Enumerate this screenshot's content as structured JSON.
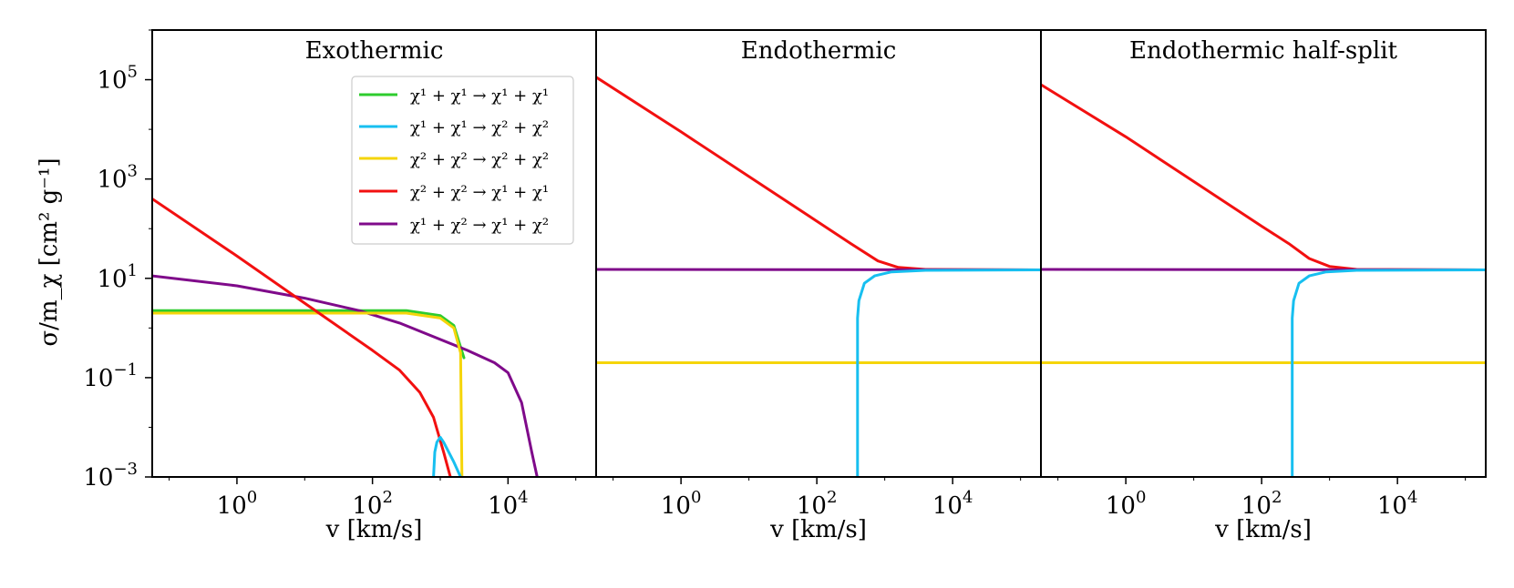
{
  "chart_data": {
    "type": "line",
    "xscale": "log",
    "yscale": "log",
    "xlim_log10": [
      -1.25,
      5.3
    ],
    "ylim_log10": [
      -3,
      6
    ],
    "ylabel": "σ/m_χ [cm² g⁻¹]",
    "y_tick_labels": [
      {
        "base": "10",
        "exp": "5",
        "log": 5
      },
      {
        "base": "10",
        "exp": "3",
        "log": 3
      },
      {
        "base": "10",
        "exp": "1",
        "log": 1
      },
      {
        "base": "10",
        "exp": "−1",
        "log": -1
      },
      {
        "base": "10",
        "exp": "−3",
        "log": -3
      }
    ],
    "x_tick_labels": [
      {
        "base": "10",
        "exp": "0",
        "log": 0
      },
      {
        "base": "10",
        "exp": "2",
        "log": 2
      },
      {
        "base": "10",
        "exp": "4",
        "log": 4
      }
    ],
    "legend": {
      "placement": "top-right of first panel",
      "entries": [
        {
          "key": "s11_11",
          "label": "χ¹ + χ¹ → χ¹ + χ¹",
          "color": "#2ecc2e"
        },
        {
          "key": "s11_22",
          "label": "χ¹ + χ¹ → χ² + χ²",
          "color": "#17bff0"
        },
        {
          "key": "s22_22",
          "label": "χ² + χ² → χ² + χ²",
          "color": "#f5d50a"
        },
        {
          "key": "s22_11",
          "label": "χ² + χ² → χ¹ + χ¹",
          "color": "#f21010"
        },
        {
          "key": "s12_12",
          "label": "χ¹ + χ² → χ¹ + χ²",
          "color": "#7f0a8a"
        }
      ]
    },
    "panels": [
      {
        "title": "Exothermic",
        "xlabel": "v [km/s]",
        "series": [
          {
            "key": "s11_11",
            "points": [
              [
                -1.25,
                0.35
              ],
              [
                2.5,
                0.35
              ],
              [
                3.0,
                0.25
              ],
              [
                3.2,
                0.05
              ],
              [
                3.35,
                -0.6
              ]
            ]
          },
          {
            "key": "s12_12",
            "points": [
              [
                -1.25,
                1.05
              ],
              [
                0,
                0.85
              ],
              [
                1,
                0.6
              ],
              [
                1.8,
                0.35
              ],
              [
                2.4,
                0.1
              ],
              [
                3.4,
                -0.45
              ],
              [
                3.8,
                -0.7
              ],
              [
                4.0,
                -0.9
              ],
              [
                4.2,
                -1.5
              ],
              [
                4.35,
                -2.5
              ],
              [
                4.43,
                -3.0
              ]
            ]
          },
          {
            "key": "s22_22",
            "points": [
              [
                -1.25,
                0.3
              ],
              [
                2.5,
                0.3
              ],
              [
                3.0,
                0.2
              ],
              [
                3.2,
                0.0
              ],
              [
                3.3,
                -0.5
              ],
              [
                3.32,
                -3.0
              ]
            ]
          },
          {
            "key": "s22_11",
            "points": [
              [
                -1.25,
                2.6
              ],
              [
                0,
                1.45
              ],
              [
                1,
                0.5
              ],
              [
                2.0,
                -0.45
              ],
              [
                2.4,
                -0.85
              ],
              [
                2.7,
                -1.3
              ],
              [
                2.9,
                -1.8
              ],
              [
                3.05,
                -2.5
              ],
              [
                3.15,
                -3.0
              ]
            ]
          },
          {
            "key": "s11_22",
            "points": [
              [
                2.9,
                -3.0
              ],
              [
                2.92,
                -2.5
              ],
              [
                2.95,
                -2.3
              ],
              [
                3.0,
                -2.2
              ],
              [
                3.05,
                -2.3
              ],
              [
                3.2,
                -2.7
              ],
              [
                3.3,
                -3.0
              ]
            ]
          }
        ]
      },
      {
        "title": "Endothermic",
        "xlabel": "v [km/s]",
        "series": [
          {
            "key": "s22_11",
            "points": [
              [
                -1.25,
                5.05
              ],
              [
                0,
                3.95
              ],
              [
                1,
                3.05
              ],
              [
                2,
                2.15
              ],
              [
                2.5,
                1.7
              ],
              [
                2.9,
                1.35
              ],
              [
                3.2,
                1.22
              ],
              [
                3.6,
                1.18
              ],
              [
                5.3,
                1.17
              ]
            ]
          },
          {
            "key": "s12_12",
            "points": [
              [
                -1.25,
                1.18
              ],
              [
                5.3,
                1.17
              ]
            ]
          },
          {
            "key": "s22_22",
            "points": [
              [
                -1.25,
                -0.7
              ],
              [
                5.3,
                -0.7
              ]
            ]
          },
          {
            "key": "s11_22",
            "points": [
              [
                2.6,
                -3.0
              ],
              [
                2.6,
                0.2
              ],
              [
                2.62,
                0.55
              ],
              [
                2.7,
                0.9
              ],
              [
                2.85,
                1.05
              ],
              [
                3.1,
                1.13
              ],
              [
                3.6,
                1.16
              ],
              [
                5.3,
                1.17
              ]
            ]
          }
        ]
      },
      {
        "title": "Endothermic half-split",
        "xlabel": "v [km/s]",
        "series": [
          {
            "key": "s22_11",
            "points": [
              [
                -1.25,
                4.9
              ],
              [
                0,
                3.85
              ],
              [
                1,
                2.95
              ],
              [
                2,
                2.05
              ],
              [
                2.4,
                1.7
              ],
              [
                2.7,
                1.4
              ],
              [
                3.0,
                1.24
              ],
              [
                3.4,
                1.18
              ],
              [
                5.3,
                1.17
              ]
            ]
          },
          {
            "key": "s12_12",
            "points": [
              [
                -1.25,
                1.18
              ],
              [
                5.3,
                1.17
              ]
            ]
          },
          {
            "key": "s22_22",
            "points": [
              [
                -1.25,
                -0.7
              ],
              [
                5.3,
                -0.7
              ]
            ]
          },
          {
            "key": "s11_22",
            "points": [
              [
                2.45,
                -3.0
              ],
              [
                2.45,
                0.2
              ],
              [
                2.47,
                0.55
              ],
              [
                2.55,
                0.9
              ],
              [
                2.7,
                1.05
              ],
              [
                2.95,
                1.13
              ],
              [
                3.4,
                1.16
              ],
              [
                5.3,
                1.17
              ]
            ]
          }
        ]
      }
    ]
  }
}
